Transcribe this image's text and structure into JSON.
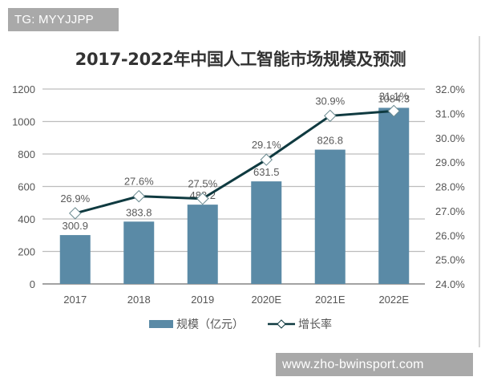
{
  "watermarks": {
    "top": "TG: MYYJJPP",
    "bottom": "www.zho-bwinsport.com"
  },
  "chart_data": {
    "type": "bar+line",
    "title": "2017-2022年中国人工智能市场规模及预测",
    "categories": [
      "2017",
      "2018",
      "2019",
      "2020E",
      "2021E",
      "2022E"
    ],
    "series": [
      {
        "name": "规模（亿元）",
        "type": "bar",
        "axis": "left",
        "color": "#5a8aa6",
        "values": [
          300.9,
          383.8,
          488.2,
          631.5,
          826.8,
          1084.3
        ],
        "labels": [
          "300.9",
          "383.8",
          "488.2",
          "631.5",
          "826.8",
          "1084.3"
        ]
      },
      {
        "name": "增长率",
        "type": "line",
        "axis": "right",
        "color": "#0f3a40",
        "marker": "diamond-white",
        "values": [
          26.9,
          27.6,
          27.5,
          29.1,
          30.9,
          31.1
        ],
        "labels": [
          "26.9%",
          "27.6%",
          "27.5%",
          "29.1%",
          "30.9%",
          "31.1%"
        ]
      }
    ],
    "left_axis": {
      "ylim": [
        0,
        1200
      ],
      "ticks": [
        "0",
        "200",
        "400",
        "600",
        "800",
        "1000",
        "1200"
      ],
      "tick_values": [
        0,
        200,
        400,
        600,
        800,
        1000,
        1200
      ]
    },
    "right_axis": {
      "ylim": [
        24.0,
        32.0
      ],
      "ticks": [
        "24.0%",
        "25.0%",
        "26.0%",
        "27.0%",
        "28.0%",
        "29.0%",
        "30.0%",
        "31.0%",
        "32.0%"
      ],
      "tick_values": [
        24,
        25,
        26,
        27,
        28,
        29,
        30,
        31,
        32
      ]
    },
    "xlabel": "",
    "ylabel": "",
    "grid": true,
    "legend_position": "bottom"
  },
  "legend": {
    "bar_label": "规模（亿元）",
    "line_label": "增长率"
  }
}
